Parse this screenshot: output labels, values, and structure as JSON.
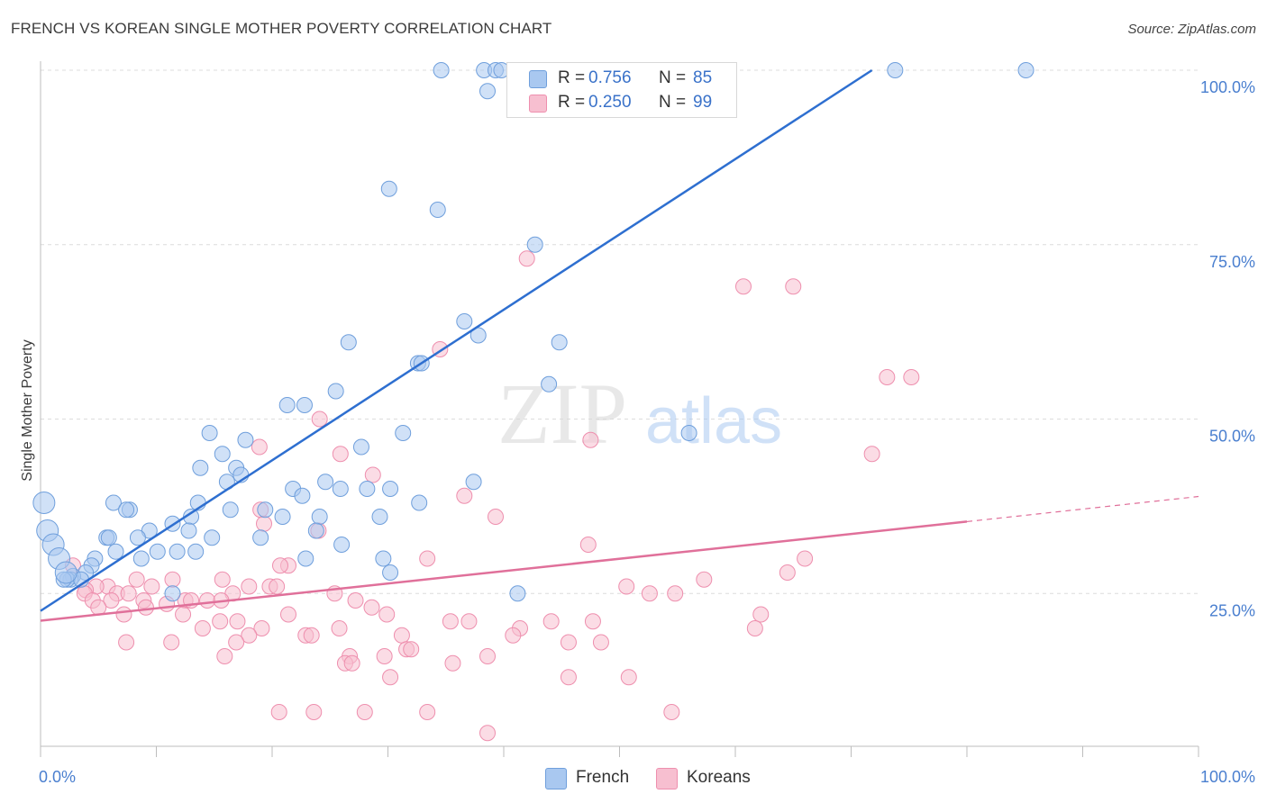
{
  "header": {
    "title": "FRENCH VS KOREAN SINGLE MOTHER POVERTY CORRELATION CHART",
    "source": "Source: ZipAtlas.com"
  },
  "watermark": {
    "zip": "ZIP",
    "atlas": "atlas"
  },
  "legend_top": {
    "french": {
      "r_label": "R =",
      "r_value": "0.756",
      "n_label": "N =",
      "n_value": "85"
    },
    "koreans": {
      "r_label": "R =",
      "r_value": "0.250",
      "n_label": "N =",
      "n_value": "99"
    }
  },
  "legend_bottom": {
    "french": "French",
    "koreans": "Koreans"
  },
  "colors": {
    "french_fill": "#a9c8f0",
    "french_stroke": "#6f9fdc",
    "french_line": "#2e6fd0",
    "koreans_fill": "#f7bfd0",
    "koreans_stroke": "#ee8fae",
    "koreans_line": "#e0709a",
    "tick_text": "#4a7fcf",
    "grid": "#dcdcdc"
  },
  "chart_data": {
    "type": "scatter",
    "title": "FRENCH VS KOREAN SINGLE MOTHER POVERTY CORRELATION CHART",
    "xlabel": "",
    "ylabel": "Single Mother Poverty",
    "xlim": [
      0,
      100
    ],
    "ylim": [
      0,
      100
    ],
    "x_tick_labels": [
      "0.0%",
      "100.0%"
    ],
    "y_ticks": [
      25,
      50,
      75,
      100
    ],
    "y_tick_labels": [
      "25.0%",
      "50.0%",
      "75.0%",
      "100.0%"
    ],
    "grid": true,
    "legend_position": "top-center",
    "series": [
      {
        "name": "French",
        "r": 0.756,
        "n": 85,
        "trend": {
          "x": [
            0,
            71.8
          ],
          "y": [
            22.5,
            100
          ]
        },
        "points": [
          [
            34.6,
            100
          ],
          [
            38.3,
            100
          ],
          [
            39.3,
            100
          ],
          [
            39.8,
            100
          ],
          [
            41.4,
            100
          ],
          [
            43.5,
            100
          ],
          [
            46.3,
            100
          ],
          [
            48.3,
            100
          ],
          [
            73.8,
            100
          ],
          [
            85.1,
            100
          ],
          [
            38.6,
            97
          ],
          [
            30.1,
            83
          ],
          [
            34.3,
            80
          ],
          [
            42.7,
            75
          ],
          [
            36.6,
            64
          ],
          [
            44.8,
            61
          ],
          [
            26.6,
            61
          ],
          [
            37.8,
            62
          ],
          [
            32.6,
            58
          ],
          [
            43.9,
            55
          ],
          [
            25.5,
            54
          ],
          [
            22.8,
            52
          ],
          [
            21.3,
            52
          ],
          [
            31.3,
            48
          ],
          [
            27.7,
            46
          ],
          [
            17.7,
            47
          ],
          [
            15.7,
            45
          ],
          [
            16.9,
            43
          ],
          [
            13.8,
            43
          ],
          [
            17.3,
            42
          ],
          [
            37.4,
            41
          ],
          [
            28.2,
            40
          ],
          [
            21.8,
            40
          ],
          [
            24.6,
            41
          ],
          [
            16.1,
            41
          ],
          [
            25.9,
            40
          ],
          [
            30.2,
            40
          ],
          [
            32.7,
            38
          ],
          [
            22.6,
            39
          ],
          [
            13.6,
            38
          ],
          [
            6.3,
            38
          ],
          [
            7.7,
            37
          ],
          [
            7.4,
            37
          ],
          [
            16.4,
            37
          ],
          [
            19.4,
            37
          ],
          [
            20.9,
            36
          ],
          [
            24.1,
            36
          ],
          [
            29.3,
            36
          ],
          [
            13.0,
            36
          ],
          [
            11.4,
            35
          ],
          [
            12.8,
            34
          ],
          [
            9.4,
            34
          ],
          [
            23.8,
            34
          ],
          [
            8.4,
            33
          ],
          [
            14.8,
            33
          ],
          [
            5.7,
            33
          ],
          [
            5.9,
            33
          ],
          [
            19.0,
            33
          ],
          [
            26.0,
            32
          ],
          [
            11.8,
            31
          ],
          [
            13.4,
            31
          ],
          [
            6.5,
            31
          ],
          [
            10.1,
            31
          ],
          [
            29.6,
            30
          ],
          [
            8.7,
            30
          ],
          [
            4.7,
            30
          ],
          [
            4.4,
            29
          ],
          [
            3.9,
            28
          ],
          [
            2.8,
            27.5
          ],
          [
            2.6,
            27
          ],
          [
            2.3,
            27
          ],
          [
            2.0,
            27
          ],
          [
            3.5,
            27
          ],
          [
            11.4,
            25
          ],
          [
            41.2,
            25
          ],
          [
            30.2,
            28
          ],
          [
            22.9,
            30
          ],
          [
            32.9,
            58
          ],
          [
            14.6,
            48
          ],
          [
            56.0,
            48
          ],
          [
            0.3,
            38
          ],
          [
            0.6,
            34
          ],
          [
            1.1,
            32
          ],
          [
            1.6,
            30
          ],
          [
            2.2,
            28
          ]
        ]
      },
      {
        "name": "Koreans",
        "r": 0.25,
        "n": 99,
        "trend": {
          "x": [
            0,
            80
          ],
          "y": [
            21.1,
            35.3
          ]
        },
        "trend_dashed": {
          "x": [
            80,
            100
          ],
          "y": [
            35.3,
            38.9
          ]
        },
        "points": [
          [
            42.0,
            73
          ],
          [
            60.7,
            69
          ],
          [
            65.0,
            69
          ],
          [
            34.5,
            60
          ],
          [
            73.1,
            56
          ],
          [
            75.2,
            56
          ],
          [
            24.1,
            50
          ],
          [
            47.5,
            47
          ],
          [
            18.9,
            46
          ],
          [
            71.8,
            45
          ],
          [
            25.9,
            45
          ],
          [
            28.7,
            42
          ],
          [
            36.6,
            39
          ],
          [
            19.0,
            37
          ],
          [
            19.3,
            35
          ],
          [
            24.0,
            34
          ],
          [
            39.3,
            36
          ],
          [
            47.3,
            32
          ],
          [
            33.4,
            30
          ],
          [
            66.0,
            30
          ],
          [
            21.4,
            29
          ],
          [
            20.7,
            29
          ],
          [
            2.8,
            29
          ],
          [
            8.3,
            27
          ],
          [
            11.4,
            27
          ],
          [
            15.7,
            27
          ],
          [
            18.0,
            26
          ],
          [
            19.8,
            26
          ],
          [
            20.4,
            26
          ],
          [
            5.8,
            26
          ],
          [
            9.6,
            26
          ],
          [
            4.8,
            26
          ],
          [
            3.9,
            25.5
          ],
          [
            6.6,
            25
          ],
          [
            7.6,
            25
          ],
          [
            3.8,
            25
          ],
          [
            4.5,
            24
          ],
          [
            6.1,
            24
          ],
          [
            8.9,
            24
          ],
          [
            10.9,
            23.5
          ],
          [
            12.5,
            24
          ],
          [
            13.0,
            24
          ],
          [
            14.4,
            24
          ],
          [
            16.6,
            25
          ],
          [
            15.6,
            24
          ],
          [
            9.1,
            23
          ],
          [
            5.0,
            23
          ],
          [
            12.3,
            22
          ],
          [
            17.0,
            21
          ],
          [
            21.4,
            22
          ],
          [
            27.2,
            24
          ],
          [
            25.4,
            25
          ],
          [
            28.6,
            23
          ],
          [
            29.9,
            22
          ],
          [
            35.4,
            21
          ],
          [
            37.0,
            21
          ],
          [
            41.4,
            20
          ],
          [
            44.1,
            21
          ],
          [
            47.7,
            21
          ],
          [
            50.6,
            26
          ],
          [
            52.6,
            25
          ],
          [
            54.8,
            25
          ],
          [
            57.3,
            27
          ],
          [
            64.5,
            28
          ],
          [
            62.2,
            22
          ],
          [
            61.7,
            20
          ],
          [
            15.5,
            21
          ],
          [
            14.0,
            20
          ],
          [
            19.1,
            20
          ],
          [
            18.0,
            19
          ],
          [
            16.9,
            18
          ],
          [
            7.4,
            18
          ],
          [
            7.2,
            22
          ],
          [
            11.3,
            18
          ],
          [
            22.9,
            19
          ],
          [
            23.4,
            19
          ],
          [
            25.8,
            20
          ],
          [
            29.7,
            16
          ],
          [
            31.2,
            19
          ],
          [
            31.6,
            17
          ],
          [
            32.0,
            17
          ],
          [
            26.7,
            16
          ],
          [
            26.3,
            15
          ],
          [
            26.9,
            15
          ],
          [
            35.6,
            15
          ],
          [
            38.6,
            16
          ],
          [
            45.6,
            13
          ],
          [
            50.8,
            13
          ],
          [
            45.6,
            18
          ],
          [
            48.4,
            18
          ],
          [
            30.2,
            13
          ],
          [
            15.9,
            16
          ],
          [
            40.8,
            19
          ],
          [
            20.6,
            8
          ],
          [
            23.6,
            8
          ],
          [
            28.0,
            8
          ],
          [
            33.4,
            8
          ],
          [
            54.5,
            8
          ],
          [
            38.6,
            5
          ]
        ]
      }
    ]
  }
}
